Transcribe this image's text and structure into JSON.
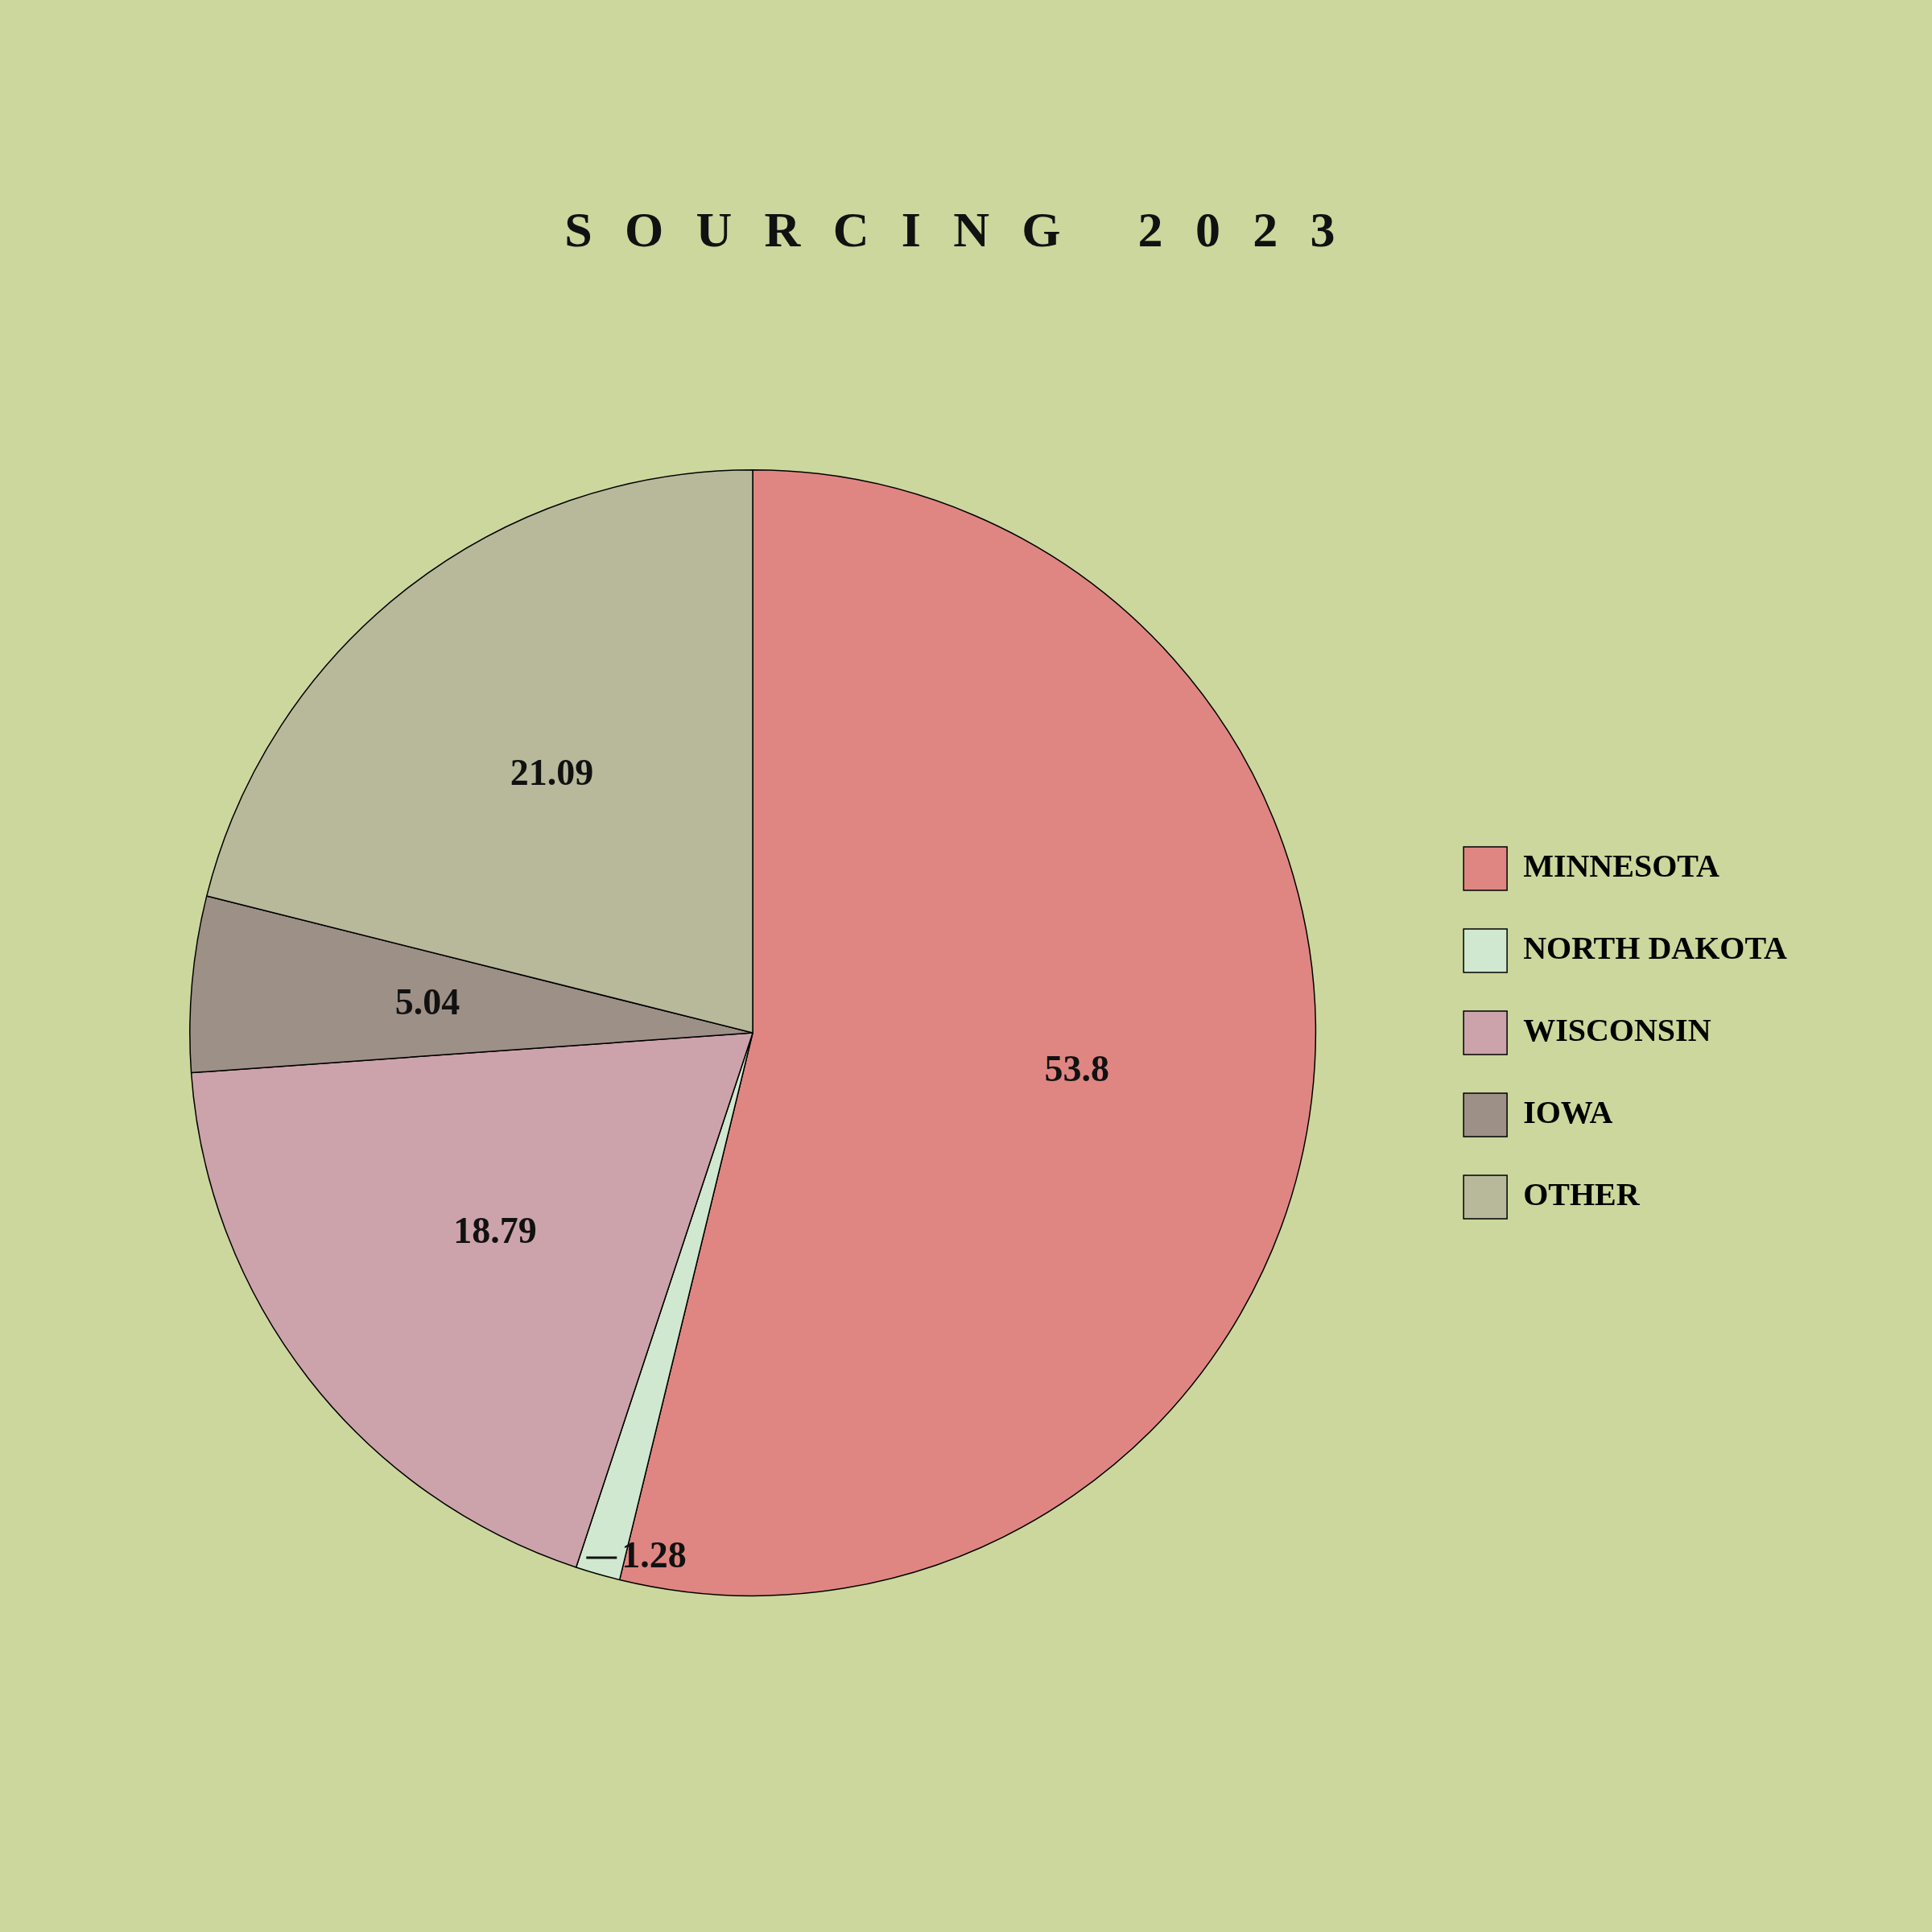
{
  "chart_data": {
    "type": "pie",
    "title": "SOURCING 2023",
    "categories": [
      "MINNESOTA",
      "NORTH DAKOTA",
      "WISCONSIN",
      "IOWA",
      "OTHER"
    ],
    "values": [
      53.8,
      1.28,
      18.79,
      5.04,
      21.09
    ],
    "colors": [
      "#df8682",
      "#cfe8cf",
      "#cca3ab",
      "#9d9087",
      "#b8b89b"
    ],
    "data_labels": true,
    "legend": "right"
  }
}
